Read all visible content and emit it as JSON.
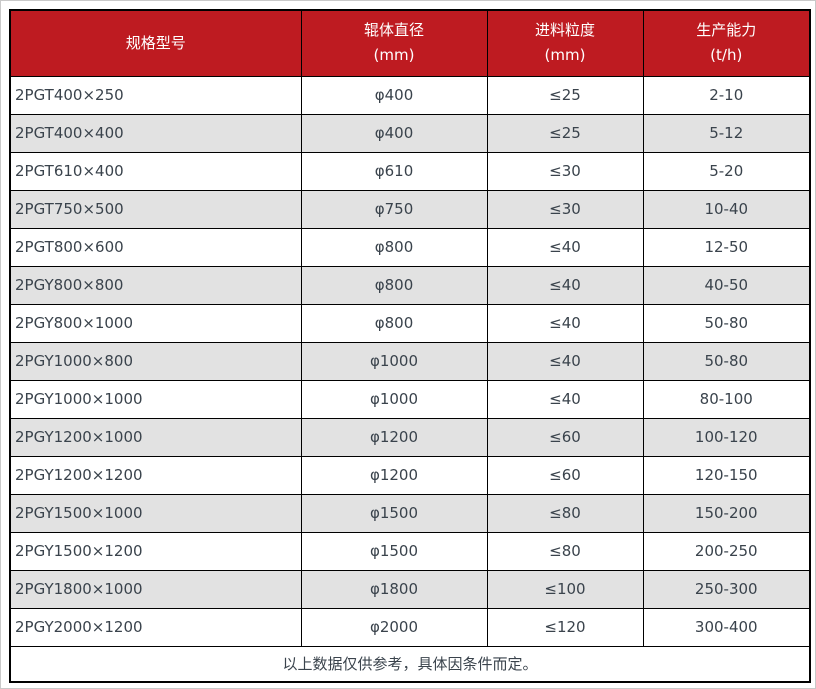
{
  "colors": {
    "header_bg": "#be1b21",
    "header_text": "#ffffff",
    "row_bg": "#ffffff",
    "row_alt_bg": "#e2e2e2",
    "body_text": "#3a434c",
    "border": "#000000",
    "page_frame": "#c9c9c9"
  },
  "table": {
    "columns": [
      {
        "title": "规格型号",
        "unit": ""
      },
      {
        "title": "辊体直径",
        "unit": "(mm)"
      },
      {
        "title": "进料粒度",
        "unit": "(mm)"
      },
      {
        "title": "生产能力",
        "unit": "(t/h)"
      }
    ],
    "rows": [
      {
        "model": "2PGT400×250",
        "roller_diameter": "φ400",
        "feed_size": "≤25",
        "capacity": "2-10"
      },
      {
        "model": "2PGT400×400",
        "roller_diameter": "φ400",
        "feed_size": "≤25",
        "capacity": "5-12"
      },
      {
        "model": "2PGT610×400",
        "roller_diameter": "φ610",
        "feed_size": "≤30",
        "capacity": "5-20"
      },
      {
        "model": "2PGT750×500",
        "roller_diameter": "φ750",
        "feed_size": "≤30",
        "capacity": "10-40"
      },
      {
        "model": "2PGT800×600",
        "roller_diameter": "φ800",
        "feed_size": "≤40",
        "capacity": "12-50"
      },
      {
        "model": "2PGY800×800",
        "roller_diameter": "φ800",
        "feed_size": "≤40",
        "capacity": "40-50"
      },
      {
        "model": "2PGY800×1000",
        "roller_diameter": "φ800",
        "feed_size": "≤40",
        "capacity": "50-80"
      },
      {
        "model": "2PGY1000×800",
        "roller_diameter": "φ1000",
        "feed_size": "≤40",
        "capacity": "50-80"
      },
      {
        "model": "2PGY1000×1000",
        "roller_diameter": "φ1000",
        "feed_size": "≤40",
        "capacity": "80-100"
      },
      {
        "model": "2PGY1200×1000",
        "roller_diameter": "φ1200",
        "feed_size": "≤60",
        "capacity": "100-120"
      },
      {
        "model": "2PGY1200×1200",
        "roller_diameter": "φ1200",
        "feed_size": "≤60",
        "capacity": "120-150"
      },
      {
        "model": "2PGY1500×1000",
        "roller_diameter": "φ1500",
        "feed_size": "≤80",
        "capacity": "150-200"
      },
      {
        "model": "2PGY1500×1200",
        "roller_diameter": "φ1500",
        "feed_size": "≤80",
        "capacity": "200-250"
      },
      {
        "model": "2PGY1800×1000",
        "roller_diameter": "φ1800",
        "feed_size": "≤100",
        "capacity": "250-300"
      },
      {
        "model": "2PGY2000×1200",
        "roller_diameter": "φ2000",
        "feed_size": "≤120",
        "capacity": "300-400"
      }
    ],
    "footnote": "以上数据仅供参考，具体因条件而定。"
  }
}
